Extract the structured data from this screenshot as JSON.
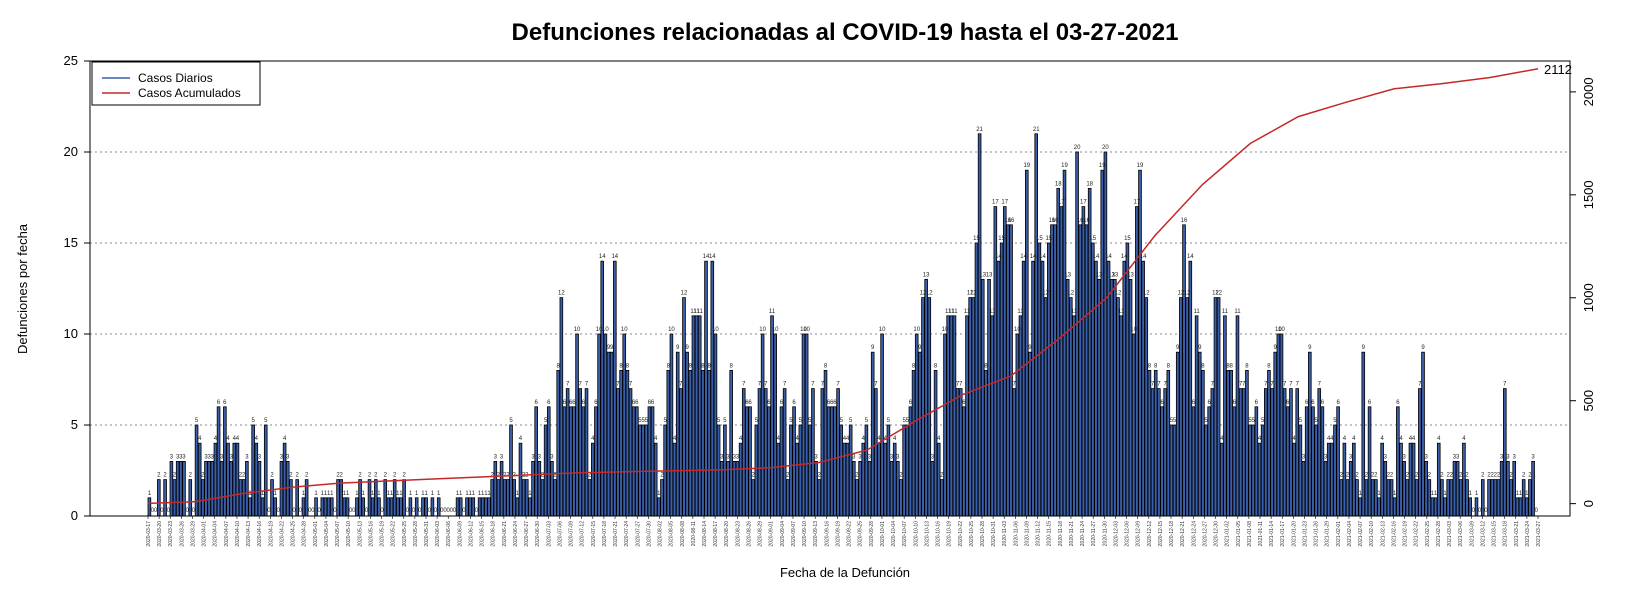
{
  "chart_data": {
    "type": "bar",
    "title": "Defunciones relacionadas al COVID-19 hasta el 03-27-2021",
    "xlabel": "Fecha de la Defunción",
    "ylabel": "Defunciones por fecha",
    "ylim": [
      0,
      25
    ],
    "y_ticks": [
      0,
      5,
      10,
      15,
      20,
      25
    ],
    "y2lim": [
      -60,
      2150
    ],
    "y2_ticks": [
      0,
      500,
      1000,
      1500,
      2000
    ],
    "grid": "horizontal dotted",
    "legend": {
      "position": "top-left",
      "entries": [
        "Casos Diarios",
        "Casos Acumulados"
      ]
    },
    "colors": {
      "bars": "#3a5fa8",
      "bar_border": "#000000",
      "cumulative": "#c62828"
    },
    "end_label": "2112",
    "series": [
      {
        "name": "Casos Diarios",
        "values": [
          1,
          0,
          0,
          2,
          0,
          2,
          0,
          3,
          2,
          3,
          3,
          3,
          0,
          2,
          0,
          5,
          4,
          2,
          3,
          3,
          3,
          4,
          6,
          3,
          6,
          4,
          3,
          4,
          4,
          2,
          2,
          3,
          1,
          5,
          4,
          3,
          1,
          5,
          0,
          2,
          1,
          0,
          3,
          4,
          3,
          2,
          0,
          2,
          0,
          1,
          2,
          0,
          0,
          1,
          0,
          1,
          1,
          1,
          1,
          0,
          2,
          2,
          1,
          1,
          0,
          0,
          1,
          2,
          1,
          0,
          2,
          1,
          2,
          1,
          0,
          2,
          1,
          1,
          2,
          1,
          1,
          2,
          0,
          1,
          0,
          1,
          0,
          1,
          1,
          0,
          1,
          0,
          1,
          0,
          0,
          0,
          0,
          0,
          1,
          1,
          0,
          1,
          1,
          1,
          0,
          1,
          1,
          1,
          1,
          2,
          3,
          2,
          3,
          2,
          2,
          5,
          2,
          1,
          4,
          2,
          2,
          1,
          3,
          6,
          3,
          2,
          5,
          6,
          3,
          2,
          8,
          12,
          6,
          7,
          6,
          6,
          10,
          7,
          6,
          7,
          2,
          4,
          6,
          10,
          14,
          10,
          9,
          9,
          14,
          7,
          8,
          10,
          8,
          7,
          6,
          6,
          5,
          5,
          5,
          6,
          6,
          4,
          1,
          2,
          5,
          8,
          10,
          4,
          9,
          7,
          12,
          9,
          8,
          11,
          11,
          11,
          8,
          14,
          8,
          14,
          10,
          5,
          3,
          5,
          3,
          8,
          3,
          3,
          4,
          7,
          6,
          6,
          2,
          5,
          7,
          10,
          7,
          6,
          11,
          10,
          4,
          6,
          7,
          2,
          5,
          6,
          4,
          5,
          10,
          10,
          5,
          7,
          3,
          2,
          7,
          8,
          6,
          6,
          6,
          7,
          5,
          4,
          4,
          5,
          3,
          2,
          3,
          4,
          5,
          3,
          9,
          7,
          4,
          10,
          4,
          5,
          3,
          4,
          3,
          2,
          5,
          5,
          6,
          8,
          10,
          9,
          12,
          13,
          12,
          3,
          8,
          4,
          2,
          10,
          11,
          11,
          11,
          7,
          7,
          6,
          11,
          12,
          12,
          15,
          21,
          13,
          8,
          13,
          11,
          17,
          14,
          15,
          17,
          16,
          16,
          7,
          10,
          11,
          14,
          19,
          9,
          14,
          21,
          15,
          14,
          12,
          15,
          16,
          16,
          18,
          17,
          19,
          13,
          12,
          11,
          20,
          16,
          17,
          16,
          18,
          15,
          14,
          13,
          19,
          20,
          14,
          13,
          13,
          12,
          11,
          14,
          15,
          13,
          10,
          17,
          19,
          14,
          12,
          8,
          7,
          8,
          7,
          6,
          7,
          8,
          5,
          5,
          9,
          12,
          16,
          12,
          14,
          6,
          11,
          9,
          8,
          5,
          6,
          7,
          12,
          12,
          4,
          11,
          8,
          8,
          6,
          11,
          7,
          7,
          8,
          5,
          5,
          6,
          4,
          5,
          7,
          8,
          7,
          9,
          10,
          10,
          7,
          6,
          7,
          4,
          7,
          5,
          3,
          6,
          9,
          6,
          5,
          7,
          6,
          3,
          4,
          4,
          5,
          6,
          2,
          4,
          2,
          3,
          4,
          2,
          1,
          9,
          2,
          6,
          2,
          2,
          1,
          4,
          3,
          2,
          2,
          1,
          6,
          4,
          3,
          2,
          4,
          4,
          2,
          7,
          9,
          3,
          2,
          1,
          1,
          4,
          2,
          1,
          2,
          2,
          3,
          3,
          2,
          4,
          2,
          1,
          0,
          1,
          0,
          2,
          0,
          2,
          2,
          2,
          2,
          3,
          7,
          3,
          2,
          3,
          1,
          1,
          2,
          1,
          2,
          3,
          0
        ]
      },
      {
        "name": "Casos Acumulados",
        "cumulative_values": [
          1,
          10,
          50,
          80,
          100,
          110,
          120,
          130,
          140,
          150,
          155,
          160,
          165,
          175,
          200,
          260,
          400,
          530,
          620,
          800,
          1000,
          1300,
          1550,
          1750,
          1880,
          1950,
          2015,
          2040,
          2070,
          2112
        ]
      }
    ],
    "date_ticks": [
      "2020-03-17",
      "2020-03-20",
      "2020-03-23",
      "2020-03-26",
      "2020-03-29",
      "2020-04-01",
      "2020-04-04",
      "2020-04-07",
      "2020-04-10",
      "2020-04-13",
      "2020-04-16",
      "2020-04-19",
      "2020-04-22",
      "2020-04-25",
      "2020-04-28",
      "2020-05-01",
      "2020-05-04",
      "2020-05-07",
      "2020-05-10",
      "2020-05-13",
      "2020-05-16",
      "2020-05-19",
      "2020-05-22",
      "2020-05-25",
      "2020-05-28",
      "2020-05-31",
      "2020-06-03",
      "2020-06-06",
      "2020-06-09",
      "2020-06-12",
      "2020-06-15",
      "2020-06-18",
      "2020-06-21",
      "2020-06-24",
      "2020-06-27",
      "2020-06-30",
      "2020-07-03",
      "2020-07-06",
      "2020-07-09",
      "2020-07-12",
      "2020-07-15",
      "2020-07-18",
      "2020-07-21",
      "2020-07-24",
      "2020-07-27",
      "2020-07-30",
      "2020-08-02",
      "2020-08-05",
      "2020-08-08",
      "2020-08-11",
      "2020-08-14",
      "2020-08-17",
      "2020-08-20",
      "2020-08-23",
      "2020-08-26",
      "2020-08-29",
      "2020-09-01",
      "2020-09-04",
      "2020-09-07",
      "2020-09-10",
      "2020-09-13",
      "2020-09-16",
      "2020-09-19",
      "2020-09-22",
      "2020-09-25",
      "2020-09-28",
      "2020-10-01",
      "2020-10-04",
      "2020-10-07",
      "2020-10-10",
      "2020-10-13",
      "2020-10-16",
      "2020-10-19",
      "2020-10-22",
      "2020-10-25",
      "2020-10-28",
      "2020-10-31",
      "2020-11-03",
      "2020-11-06",
      "2020-11-09",
      "2020-11-12",
      "2020-11-15",
      "2020-11-18",
      "2020-11-21",
      "2020-11-24",
      "2020-11-27",
      "2020-11-30",
      "2020-12-03",
      "2020-12-06",
      "2020-12-09",
      "2020-12-12",
      "2020-12-15",
      "2020-12-18",
      "2020-12-21",
      "2020-12-24",
      "2020-12-27",
      "2020-12-30",
      "2021-01-02",
      "2021-01-05",
      "2021-01-08",
      "2021-01-11",
      "2021-01-14",
      "2021-01-17",
      "2021-01-20",
      "2021-01-23",
      "2021-01-26",
      "2021-01-29",
      "2021-02-01",
      "2021-02-04",
      "2021-02-07",
      "2021-02-10",
      "2021-02-13",
      "2021-02-16",
      "2021-02-19",
      "2021-02-22",
      "2021-02-25",
      "2021-02-28",
      "2021-03-03",
      "2021-03-06",
      "2021-03-09",
      "2021-03-12",
      "2021-03-15",
      "2021-03-18",
      "2021-03-21",
      "2021-03-24",
      "2021-03-27"
    ]
  }
}
